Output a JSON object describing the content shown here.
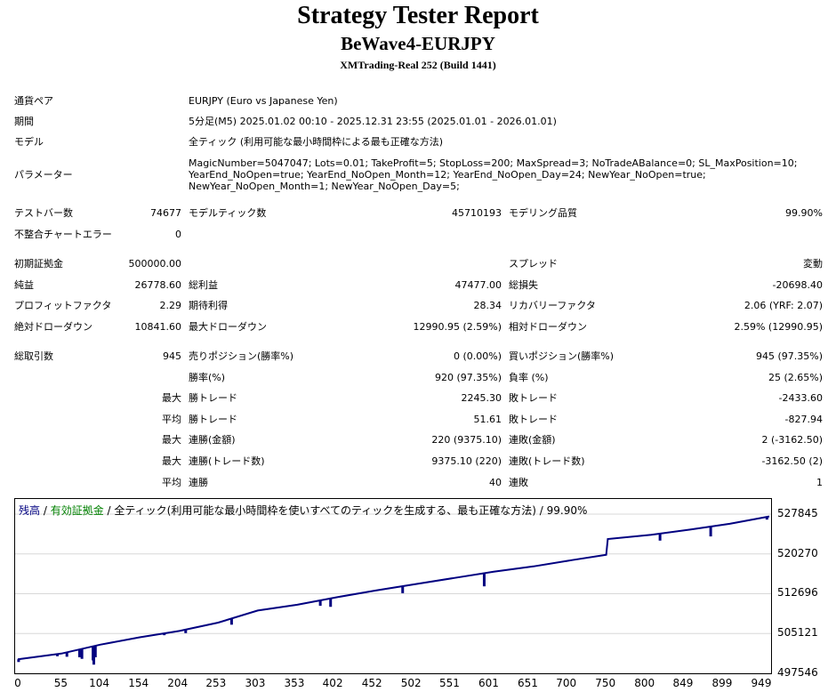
{
  "header": {
    "title": "Strategy Tester Report",
    "subtitle": "BeWave4-EURJPY",
    "server": "XMTrading-Real 252 (Build 1441)"
  },
  "info": {
    "symbol_label": "通貨ペア",
    "symbol_value": "EURJPY (Euro vs Japanese Yen)",
    "period_label": "期間",
    "period_value": "5分足(M5) 2025.01.02 00:10 - 2025.12.31 23:55 (2025.01.01 - 2026.01.01)",
    "model_label": "モデル",
    "model_value": "全ティック (利用可能な最小時間枠による最も正確な方法)",
    "params_label": "パラメーター",
    "params_line1": "MagicNumber=5047047; Lots=0.01; TakeProfit=5; StopLoss=200; MaxSpread=3; NoTradeABalance=0; SL_MaxPosition=10;",
    "params_line2": "YearEnd_NoOpen=true; YearEnd_NoOpen_Month=12; YearEnd_NoOpen_Day=24; NewYear_NoOpen=true;",
    "params_line3": "NewYear_NoOpen_Month=1; NewYear_NoOpen_Day=5;"
  },
  "stats": {
    "bars_label": "テストバー数",
    "bars_value": "74677",
    "ticks_label": "モデルティック数",
    "ticks_value": "45710193",
    "quality_label": "モデリング品質",
    "quality_value": "99.90%",
    "mismatch_label": "不整合チャートエラー",
    "mismatch_value": "0",
    "deposit_label": "初期証拠金",
    "deposit_value": "500000.00",
    "spread_label": "スプレッド",
    "spread_value": "変動",
    "net_label": "純益",
    "net_value": "26778.60",
    "gross_profit_label": "総利益",
    "gross_profit_value": "47477.00",
    "gross_loss_label": "総損失",
    "gross_loss_value": "-20698.40",
    "pf_label": "プロフィットファクタ",
    "pf_value": "2.29",
    "expected_label": "期待利得",
    "expected_value": "28.34",
    "recovery_label": "リカバリーファクタ",
    "recovery_value": "2.06 (YRF: 2.07)",
    "abs_dd_label": "絶対ドローダウン",
    "abs_dd_value": "10841.60",
    "max_dd_label": "最大ドローダウン",
    "max_dd_value": "12990.95 (2.59%)",
    "rel_dd_label": "相対ドローダウン",
    "rel_dd_value": "2.59% (12990.95)",
    "total_label": "総取引数",
    "total_value": "945",
    "short_label": "売りポジション(勝率%)",
    "short_value": "0 (0.00%)",
    "long_label": "買いポジション(勝率%)",
    "long_value": "945 (97.35%)",
    "win_label": "勝率(%)",
    "win_value": "920 (97.35%)",
    "loss_label": "負率 (%)",
    "loss_value": "25 (2.65%)",
    "max_word": "最大",
    "avg_word": "平均",
    "largest_win_label": "勝トレード",
    "largest_win_value": "2245.30",
    "largest_loss_label": "敗トレード",
    "largest_loss_value": "-2433.60",
    "avg_win_label": "勝トレード",
    "avg_win_value": "51.61",
    "avg_loss_label": "敗トレード",
    "avg_loss_value": "-827.94",
    "max_cons_win_label": "連勝(金額)",
    "max_cons_win_value": "220 (9375.10)",
    "max_cons_loss_label": "連敗(金額)",
    "max_cons_loss_value": "2 (-3162.50)",
    "max_cons_profit_label": "連勝(トレード数)",
    "max_cons_profit_value": "9375.10 (220)",
    "max_cons_lossamt_label": "連敗(トレード数)",
    "max_cons_lossamt_value": "-3162.50 (2)",
    "avg_cons_win_label": "連勝",
    "avg_cons_win_value": "40",
    "avg_cons_loss_label": "連敗",
    "avg_cons_loss_value": "1"
  },
  "legend": {
    "balance": "残高",
    "sep1": " / ",
    "equity": "有効証拠金",
    "rest": " / 全ティック(利用可能な最小時間枠を使いすべてのティックを生成する、最も正確な方法) / 99.90%",
    "balance_color": "#000080",
    "equity_color": "#008000"
  },
  "chart_data": {
    "type": "line",
    "series": [
      {
        "name": "残高",
        "x": [
          0,
          55,
          104,
          154,
          204,
          253,
          303,
          353,
          402,
          452,
          502,
          551,
          601,
          651,
          700,
          743,
          745,
          800,
          849,
          899,
          949
        ],
        "values": [
          500200,
          501300,
          503000,
          504400,
          505600,
          507200,
          509500,
          510600,
          512000,
          513300,
          514500,
          515700,
          516900,
          517900,
          519100,
          520100,
          523100,
          523900,
          524900,
          526000,
          527400
        ]
      }
    ],
    "dips": [
      {
        "x": 1,
        "value": 499700
      },
      {
        "x": 35,
        "value": 500900
      },
      {
        "x": 50,
        "value": 500800
      },
      {
        "x": 62,
        "value": 500700
      },
      {
        "x": 78,
        "value": 500600
      },
      {
        "x": 81,
        "value": 500300
      },
      {
        "x": 95,
        "value": 500000
      },
      {
        "x": 96,
        "value": 499200
      },
      {
        "x": 98,
        "value": 500600
      },
      {
        "x": 185,
        "value": 504800
      },
      {
        "x": 212,
        "value": 505200
      },
      {
        "x": 270,
        "value": 506800
      },
      {
        "x": 382,
        "value": 510400
      },
      {
        "x": 395,
        "value": 510200
      },
      {
        "x": 486,
        "value": 512800
      },
      {
        "x": 589,
        "value": 514100
      },
      {
        "x": 811,
        "value": 522800
      },
      {
        "x": 875,
        "value": 523600
      },
      {
        "x": 946,
        "value": 526800
      }
    ],
    "yticks": [
      527845,
      520270,
      512696,
      505121,
      497546
    ],
    "xticks": [
      0,
      55,
      104,
      154,
      204,
      253,
      303,
      353,
      402,
      452,
      502,
      551,
      601,
      651,
      700,
      750,
      800,
      849,
      899,
      949
    ],
    "ylim": [
      497546,
      527845
    ],
    "xlim": [
      0,
      949
    ],
    "line_color": "#000080"
  }
}
